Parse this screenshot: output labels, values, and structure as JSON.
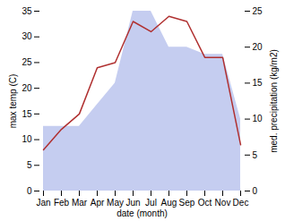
{
  "chart_data": {
    "type": "line",
    "categories": [
      "Jan",
      "Feb",
      "Mar",
      "Apr",
      "May",
      "Jun",
      "Jul",
      "Aug",
      "Sep",
      "Oct",
      "Nov",
      "Dec"
    ],
    "series": [
      {
        "type": "area",
        "axis": "y2",
        "color": "#c5cdf0",
        "values": [
          9,
          9,
          9,
          12,
          15,
          25,
          25,
          20,
          20,
          19,
          19,
          10
        ]
      },
      {
        "type": "line",
        "color": "#b03030",
        "values": [
          8,
          12,
          15,
          24,
          25,
          33,
          31,
          34,
          33,
          26,
          26,
          9
        ]
      }
    ],
    "xlabel": "date (month)",
    "ylabel": "max temp (C)",
    "y2label": "med. precipitation (kg/m2)",
    "ylim": [
      0,
      35
    ],
    "yticks": [
      0,
      5,
      10,
      15,
      20,
      25,
      30,
      35
    ],
    "y2lim": [
      0,
      25
    ],
    "y2ticks": [
      0,
      5,
      10,
      15,
      20,
      25
    ],
    "grid": false
  }
}
